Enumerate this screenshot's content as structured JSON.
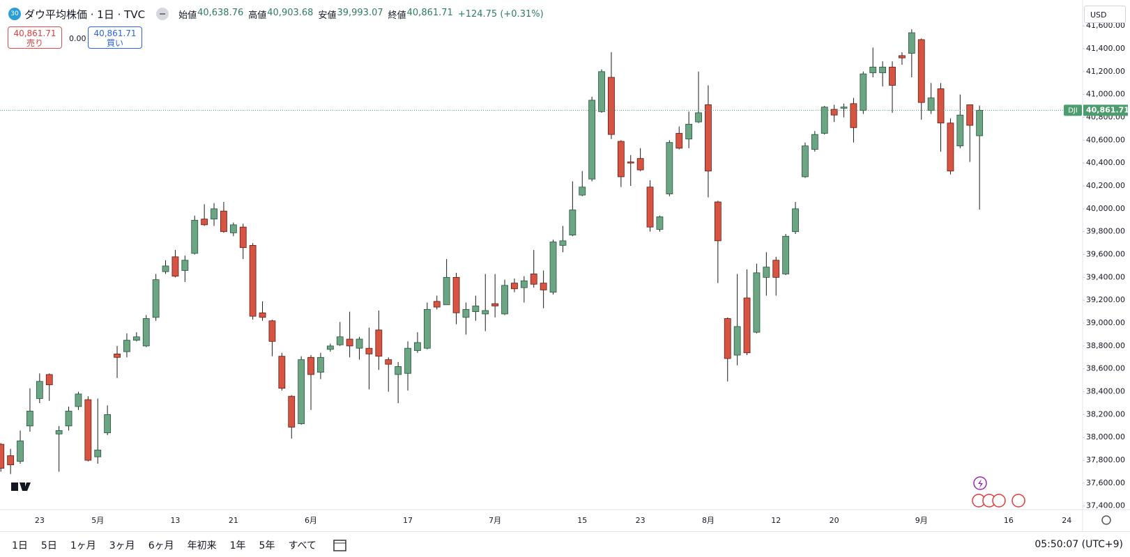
{
  "chart_data": {
    "type": "candlestick",
    "title": "ダウ平均株価 · 1日 · TVC",
    "legend": [
      {
        "label": "始値",
        "value": "40,638.76"
      },
      {
        "label": "高値",
        "value": "40,903.68"
      },
      {
        "label": "安値",
        "value": "39,993.07"
      },
      {
        "label": "終値",
        "value": "40,861.71"
      }
    ],
    "change": "+124.75 (+0.31%)",
    "up_color": "#6ba583",
    "down_color": "#d75442",
    "wick_color": "#1a1a1a",
    "categories": [
      null,
      null,
      null,
      null,
      "23",
      null,
      null,
      null,
      null,
      null,
      "5月",
      null,
      null,
      null,
      null,
      null,
      null,
      null,
      "13",
      null,
      null,
      null,
      null,
      null,
      "21",
      null,
      null,
      null,
      null,
      null,
      null,
      null,
      "6月",
      null,
      null,
      null,
      null,
      null,
      null,
      null,
      null,
      null,
      "17",
      null,
      null,
      null,
      null,
      null,
      null,
      null,
      null,
      "7月",
      null,
      null,
      null,
      null,
      null,
      null,
      null,
      null,
      "15",
      null,
      null,
      null,
      null,
      null,
      "23",
      null,
      null,
      null,
      null,
      null,
      null,
      "8月",
      null,
      null,
      null,
      null,
      null,
      null,
      "12",
      null,
      null,
      null,
      null,
      null,
      "20",
      null,
      null,
      null,
      null,
      null,
      null,
      null,
      null,
      "9月",
      null,
      null,
      null,
      null,
      null,
      null,
      null,
      null,
      "16",
      null,
      null,
      null,
      null,
      null,
      "24"
    ],
    "ohlc": [
      [
        37940,
        37950,
        37700,
        37730
      ],
      [
        37840,
        37900,
        37680,
        37760
      ],
      [
        37790,
        38060,
        37770,
        37970
      ],
      [
        38100,
        38430,
        38050,
        38230
      ],
      [
        38340,
        38560,
        38300,
        38490
      ],
      [
        38550,
        38560,
        38320,
        38460
      ],
      [
        38030,
        38100,
        37700,
        38060
      ],
      [
        38100,
        38270,
        38060,
        38230
      ],
      [
        38270,
        38400,
        38240,
        38380
      ],
      [
        38330,
        38360,
        37790,
        37800
      ],
      [
        37830,
        38340,
        37770,
        37890
      ],
      [
        38040,
        38280,
        38020,
        38200
      ],
      [
        38730,
        38800,
        38520,
        38700
      ],
      [
        38750,
        38910,
        38700,
        38850
      ],
      [
        38850,
        38920,
        38840,
        38880
      ],
      [
        38800,
        39070,
        38790,
        39040
      ],
      [
        39050,
        39430,
        39020,
        39380
      ],
      [
        39450,
        39550,
        39430,
        39500
      ],
      [
        39580,
        39640,
        39400,
        39410
      ],
      [
        39460,
        39590,
        39360,
        39550
      ],
      [
        39610,
        39940,
        39600,
        39900
      ],
      [
        39910,
        40040,
        39850,
        39860
      ],
      [
        39910,
        40050,
        39850,
        40000
      ],
      [
        39980,
        40060,
        39790,
        39800
      ],
      [
        39790,
        39880,
        39760,
        39860
      ],
      [
        39840,
        39870,
        39560,
        39660
      ],
      [
        39680,
        39700,
        39030,
        39060
      ],
      [
        39090,
        39190,
        39020,
        39050
      ],
      [
        39020,
        39030,
        38710,
        38840
      ],
      [
        38710,
        38740,
        38410,
        38430
      ],
      [
        38360,
        38370,
        37990,
        38090
      ],
      [
        38120,
        38710,
        38110,
        38680
      ],
      [
        38700,
        38720,
        38240,
        38550
      ],
      [
        38570,
        38740,
        38510,
        38700
      ],
      [
        38770,
        38820,
        38750,
        38800
      ],
      [
        38810,
        39010,
        38800,
        38880
      ],
      [
        38860,
        39100,
        38700,
        38800
      ],
      [
        38780,
        38880,
        38680,
        38860
      ],
      [
        38780,
        38960,
        38420,
        38730
      ],
      [
        38940,
        39110,
        38590,
        38710
      ],
      [
        38680,
        38700,
        38400,
        38640
      ],
      [
        38550,
        38660,
        38300,
        38620
      ],
      [
        38560,
        38840,
        38410,
        38780
      ],
      [
        38760,
        38920,
        38740,
        38830
      ],
      [
        38780,
        39180,
        38770,
        39120
      ],
      [
        39190,
        39240,
        39120,
        39140
      ],
      [
        39160,
        39560,
        39160,
        39400
      ],
      [
        39400,
        39440,
        38990,
        39090
      ],
      [
        39050,
        39180,
        38900,
        39120
      ],
      [
        39100,
        39240,
        39020,
        39150
      ],
      [
        39080,
        39430,
        38930,
        39110
      ],
      [
        39170,
        39430,
        39050,
        39150
      ],
      [
        39080,
        39380,
        39070,
        39330
      ],
      [
        39350,
        39390,
        39270,
        39300
      ],
      [
        39310,
        39410,
        39180,
        39370
      ],
      [
        39430,
        39640,
        39310,
        39340
      ],
      [
        39350,
        39460,
        39130,
        39290
      ],
      [
        39270,
        39730,
        39250,
        39710
      ],
      [
        39680,
        39850,
        39620,
        39720
      ],
      [
        39770,
        40240,
        39760,
        39990
      ],
      [
        40120,
        40330,
        40110,
        40190
      ],
      [
        40260,
        40980,
        40240,
        40950
      ],
      [
        40850,
        41220,
        40840,
        41200
      ],
      [
        41150,
        41370,
        40610,
        40650
      ],
      [
        40590,
        40600,
        40190,
        40280
      ],
      [
        40410,
        40470,
        40200,
        40400
      ],
      [
        40440,
        40530,
        40330,
        40340
      ],
      [
        40190,
        40250,
        39800,
        39840
      ],
      [
        39820,
        39940,
        39800,
        39930
      ],
      [
        40130,
        40600,
        40110,
        40580
      ],
      [
        40660,
        40720,
        40520,
        40530
      ],
      [
        40610,
        40850,
        40530,
        40740
      ],
      [
        40760,
        41200,
        40750,
        40840
      ],
      [
        40910,
        41080,
        40100,
        40330
      ],
      [
        40060,
        40070,
        39350,
        39720
      ],
      [
        39040,
        39050,
        38490,
        38690
      ],
      [
        38720,
        39430,
        38630,
        38970
      ],
      [
        39220,
        39470,
        38720,
        38740
      ],
      [
        38920,
        39520,
        38910,
        39440
      ],
      [
        39400,
        39620,
        39240,
        39490
      ],
      [
        39550,
        39580,
        39240,
        39400
      ],
      [
        39430,
        39780,
        39420,
        39760
      ],
      [
        39800,
        40060,
        39780,
        40000
      ],
      [
        40280,
        40580,
        40270,
        40550
      ],
      [
        40520,
        40680,
        40500,
        40650
      ],
      [
        40660,
        40900,
        40650,
        40890
      ],
      [
        40870,
        40910,
        40760,
        40820
      ],
      [
        40880,
        40920,
        40800,
        40890
      ],
      [
        40920,
        40970,
        40580,
        40710
      ],
      [
        40860,
        41200,
        40830,
        41180
      ],
      [
        41190,
        41410,
        41150,
        41240
      ],
      [
        41190,
        41290,
        41070,
        41240
      ],
      [
        41240,
        41290,
        40840,
        41080
      ],
      [
        41340,
        41370,
        41260,
        41320
      ],
      [
        41360,
        41570,
        41150,
        41540
      ],
      [
        41480,
        41490,
        40780,
        40930
      ],
      [
        40860,
        41100,
        40830,
        40970
      ],
      [
        41050,
        41100,
        40500,
        40750
      ],
      [
        40750,
        40790,
        40300,
        40330
      ],
      [
        40550,
        41000,
        40530,
        40820
      ],
      [
        40910,
        40910,
        40410,
        40730
      ],
      [
        40638.76,
        40903.68,
        39993.07,
        40861.71
      ],
      null,
      null,
      null,
      null,
      null,
      null,
      null,
      null,
      null
    ],
    "ylim": [
      37368,
      41796
    ],
    "yticks": [
      {
        "value": 37400,
        "label": "37,400.00"
      },
      {
        "value": 37600,
        "label": "37,600.00"
      },
      {
        "value": 37800,
        "label": "37,800.00"
      },
      {
        "value": 38000,
        "label": "38,000.00"
      },
      {
        "value": 38200,
        "label": "38,200.00"
      },
      {
        "value": 38400,
        "label": "38,400.00"
      },
      {
        "value": 38600,
        "label": "38,600.00"
      },
      {
        "value": 38800,
        "label": "38,800.00"
      },
      {
        "value": 39000,
        "label": "39,000.00"
      },
      {
        "value": 39200,
        "label": "39,200.00"
      },
      {
        "value": 39400,
        "label": "39,400.00"
      },
      {
        "value": 39600,
        "label": "39,600.00"
      },
      {
        "value": 39800,
        "label": "39,800.00"
      },
      {
        "value": 40000,
        "label": "40,000.00"
      },
      {
        "value": 40200,
        "label": "40,200.00"
      },
      {
        "value": 40400,
        "label": "40,400.00"
      },
      {
        "value": 40600,
        "label": "40,600.00"
      },
      {
        "value": 40800,
        "label": "40,800.00"
      },
      {
        "value": 41000,
        "label": "41,000.00"
      },
      {
        "value": 41200,
        "label": "41,200.00"
      },
      {
        "value": 41400,
        "label": "41,400.00"
      },
      {
        "value": 41600,
        "label": "41,600.00"
      }
    ],
    "last_price": {
      "name": "DJI",
      "value": 40861.71,
      "label": "40,861.71",
      "color": "#4d9c6e"
    },
    "grid": false
  },
  "ui": {
    "badge": "30",
    "sell": {
      "price": "40,861.71",
      "label": "売り"
    },
    "spread": "0.00",
    "buy": {
      "price": "40,861.71",
      "label": "買い"
    },
    "currency": "USD",
    "ranges": [
      "1日",
      "5日",
      "1ヶ月",
      "3ヶ月",
      "6ヶ月",
      "年初来",
      "1年",
      "5年",
      "すべて"
    ],
    "clock": "05:50:07 (UTC+9)"
  }
}
